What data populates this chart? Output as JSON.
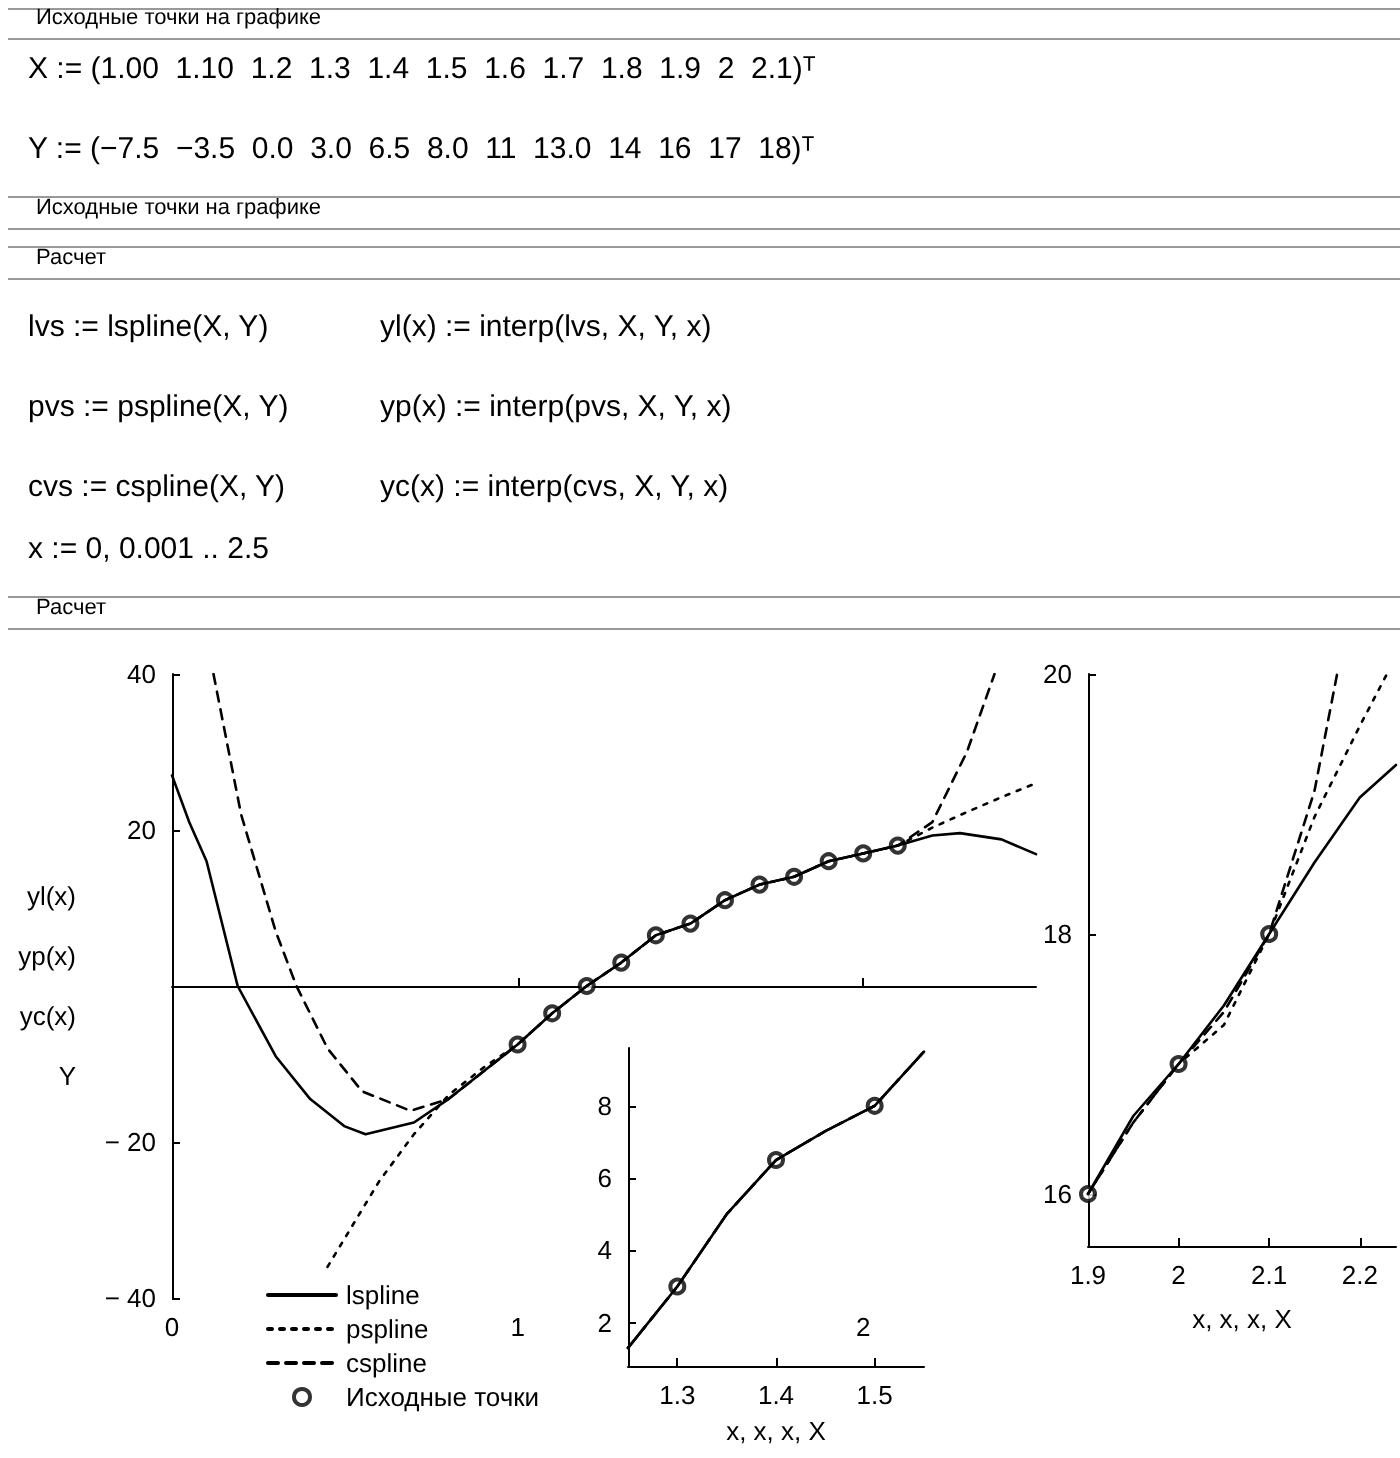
{
  "chart_data": [
    {
      "type": "line",
      "annotations": [
        "Исходные точки на графике",
        "X := (1.00  1.10  1.2  1.3  1.4  1.5  1.6  1.7  1.8  1.9  2  2.1)ᵀ",
        "Y := (−7.5  −3.5  0.0  3.0  6.5  8.0  11  13.0  14  16  17  18)ᵀ",
        "Исходные точки на графике",
        "Расчет",
        "lvs := lspline(X, Y)",
        "yl(x) := interp(lvs, X, Y, x)",
        "pvs := pspline(X, Y)",
        "yp(x) := interp(pvs, X, Y, x)",
        "cvs := cspline(X, Y)",
        "yc(x) := interp(cvs, X, Y, x)",
        "x := 0, 0.001 .. 2.5",
        "Расчет"
      ],
      "ylabel": "yl(x)\nyp(x)\nyc(x)\nY",
      "xlim": [
        0,
        2.5
      ],
      "ylim": [
        -40,
        40
      ],
      "xticks": [
        0,
        1,
        2
      ],
      "yticks": [
        -40,
        -20,
        20,
        40
      ],
      "legend": "bottom left",
      "series": [
        {
          "name": "lspline",
          "line_style": "solid",
          "color": "#000000",
          "x": [
            0,
            0.05,
            0.1,
            0.19,
            0.3,
            0.4,
            0.5,
            0.56,
            0.7,
            0.8,
            0.9,
            1,
            1.1,
            1.2,
            1.3,
            1.4,
            1.5,
            1.6,
            1.7,
            1.8,
            1.9,
            2,
            2.1,
            2.2,
            2.28,
            2.4,
            2.5
          ],
          "values": [
            27,
            21,
            16,
            0,
            -9,
            -14.5,
            -18,
            -19,
            -17.5,
            -14.5,
            -11,
            -7.5,
            -3.5,
            0,
            3,
            6.5,
            8,
            11,
            13,
            14,
            16,
            17,
            18,
            19.3,
            19.6,
            18.8,
            16.9
          ]
        },
        {
          "name": "pspline",
          "line_style": "dotted",
          "color": "#000000",
          "x": [
            0.45,
            0.6,
            0.7,
            0.8,
            0.9,
            1,
            1.1,
            1.2,
            1.3,
            1.4,
            1.5,
            1.6,
            1.7,
            1.8,
            1.9,
            2,
            2.1,
            2.2,
            2.3,
            2.4,
            2.5
          ],
          "values": [
            -36,
            -25,
            -19,
            -14,
            -10.5,
            -7.5,
            -3.5,
            0,
            3,
            6.5,
            8,
            11,
            13,
            14,
            16,
            17,
            18,
            20.3,
            22.3,
            24.2,
            26
          ]
        },
        {
          "name": "cspline",
          "line_style": "dashed",
          "color": "#000000",
          "x": [
            0.12,
            0.2,
            0.3,
            0.36,
            0.45,
            0.55,
            0.69,
            0.8,
            0.9,
            1,
            1.1,
            1.2,
            1.3,
            1.4,
            1.5,
            1.6,
            1.7,
            1.8,
            1.9,
            2,
            2.1,
            2.2,
            2.3,
            2.38
          ],
          "values": [
            40,
            22,
            7,
            0,
            -8,
            -13.5,
            -16,
            -14.5,
            -11,
            -7.5,
            -3.5,
            0,
            3,
            6.5,
            8,
            11,
            13,
            14,
            16,
            17,
            18,
            21,
            30,
            40
          ]
        },
        {
          "name": "Исходные точки",
          "type": "scatter",
          "marker": "circle",
          "color": "#000000",
          "x": [
            1,
            1.1,
            1.2,
            1.3,
            1.4,
            1.5,
            1.6,
            1.7,
            1.8,
            1.9,
            2,
            2.1
          ],
          "values": [
            -7.5,
            -3.5,
            0,
            3,
            6.5,
            8,
            11,
            13,
            14,
            16,
            17,
            18
          ]
        }
      ]
    },
    {
      "type": "line",
      "xlabel": "x, x, x, X",
      "xlim": [
        1.25,
        1.55
      ],
      "ylim": [
        0.8,
        9.6
      ],
      "xticks": [
        1.3,
        1.4,
        1.5
      ],
      "yticks": [
        2,
        4,
        6,
        8
      ],
      "series": [
        {
          "line_style": "solid",
          "color": "#000000",
          "x": [
            1.25,
            1.3,
            1.35,
            1.4,
            1.45,
            1.5,
            1.55
          ],
          "values": [
            1.3,
            3,
            5,
            6.5,
            7.3,
            8,
            9.5
          ]
        },
        {
          "line_style": "dotted",
          "color": "#000000",
          "x": [
            1.25,
            1.3,
            1.35,
            1.4,
            1.45,
            1.5,
            1.55
          ],
          "values": [
            1.3,
            3,
            5,
            6.5,
            7.3,
            8,
            9.5
          ]
        },
        {
          "line_style": "dashed",
          "color": "#000000",
          "x": [
            1.25,
            1.3,
            1.35,
            1.4,
            1.45,
            1.5,
            1.55
          ],
          "values": [
            1.3,
            3,
            5,
            6.5,
            7.3,
            8,
            9.5
          ]
        },
        {
          "type": "scatter",
          "marker": "circle",
          "color": "#000000",
          "x": [
            1.3,
            1.4,
            1.5
          ],
          "values": [
            3,
            6.5,
            8
          ]
        }
      ]
    },
    {
      "type": "line",
      "xlabel": "x, x, x, X",
      "xlim": [
        1.9,
        2.24
      ],
      "ylim": [
        15.6,
        20
      ],
      "xticks": [
        1.9,
        2,
        2.1,
        2.2
      ],
      "yticks": [
        16,
        18,
        20
      ],
      "series": [
        {
          "line_style": "solid",
          "color": "#000000",
          "x": [
            1.9,
            1.95,
            2,
            2.05,
            2.1,
            2.15,
            2.2,
            2.24
          ],
          "values": [
            16,
            16.6,
            17,
            17.45,
            18,
            18.55,
            19.05,
            19.3
          ]
        },
        {
          "line_style": "dotted",
          "color": "#000000",
          "x": [
            1.9,
            1.95,
            2,
            2.05,
            2.1,
            2.15,
            2.2,
            2.23
          ],
          "values": [
            16,
            16.55,
            17,
            17.3,
            18,
            18.9,
            19.6,
            20
          ]
        },
        {
          "line_style": "dashed",
          "color": "#000000",
          "x": [
            1.9,
            1.95,
            2,
            2.05,
            2.1,
            2.15,
            2.175
          ],
          "values": [
            16,
            16.55,
            17,
            17.4,
            18,
            19.1,
            20
          ]
        },
        {
          "type": "scatter",
          "marker": "circle",
          "color": "#000000",
          "x": [
            1.9,
            2,
            2.1
          ],
          "values": [
            16,
            17,
            18
          ]
        }
      ]
    }
  ]
}
